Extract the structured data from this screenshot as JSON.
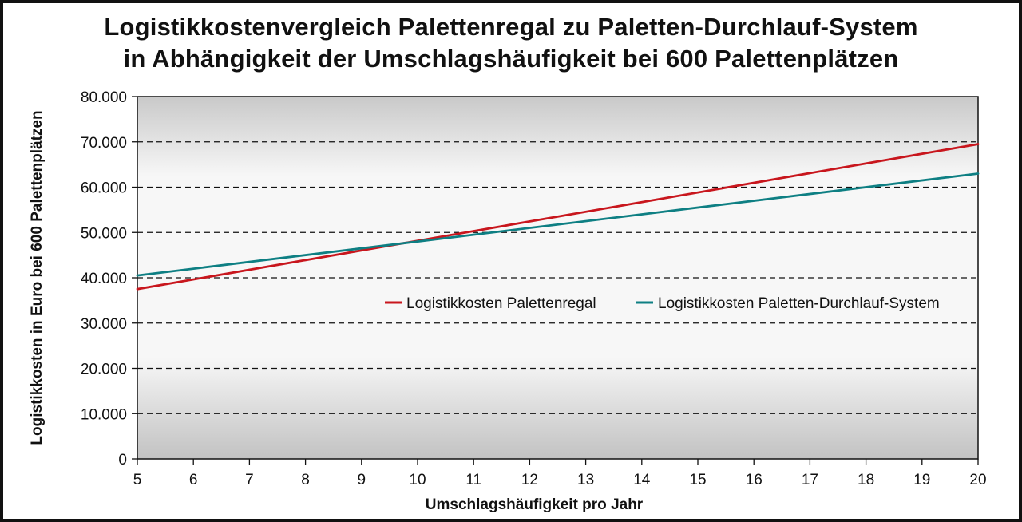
{
  "chart_data": {
    "type": "line",
    "title_lines": [
      "Logistikkostenvergleich Palettenregal zu Paletten-Durchlauf-System",
      "in Abhängigkeit der Umschlagshäufigkeit bei 600 Palettenplätzen"
    ],
    "xlabel": "Umschlagshäufigkeit pro Jahr",
    "ylabel": "Logistikkosten in Euro bei 600 Palettenplätzen",
    "xlim": [
      5,
      20
    ],
    "ylim": [
      0,
      80000
    ],
    "x_ticks": [
      "5",
      "6",
      "7",
      "8",
      "9",
      "10",
      "11",
      "12",
      "13",
      "14",
      "15",
      "16",
      "17",
      "18",
      "19",
      "20"
    ],
    "y_ticks": [
      "0",
      "10.000",
      "20.000",
      "30.000",
      "40.000",
      "50.000",
      "60.000",
      "70.000",
      "80.000"
    ],
    "grid": "horizontal dashed",
    "legend_position": "right-center inside plot",
    "series": [
      {
        "name": "Logistikkosten Palettenregal",
        "color": "#c8161d",
        "x": [
          5,
          20
        ],
        "y": [
          37500,
          69500
        ]
      },
      {
        "name": "Logistikkosten Paletten-Durchlauf-System",
        "color": "#0e7f83",
        "x": [
          5,
          20
        ],
        "y": [
          40500,
          63000
        ]
      }
    ]
  }
}
